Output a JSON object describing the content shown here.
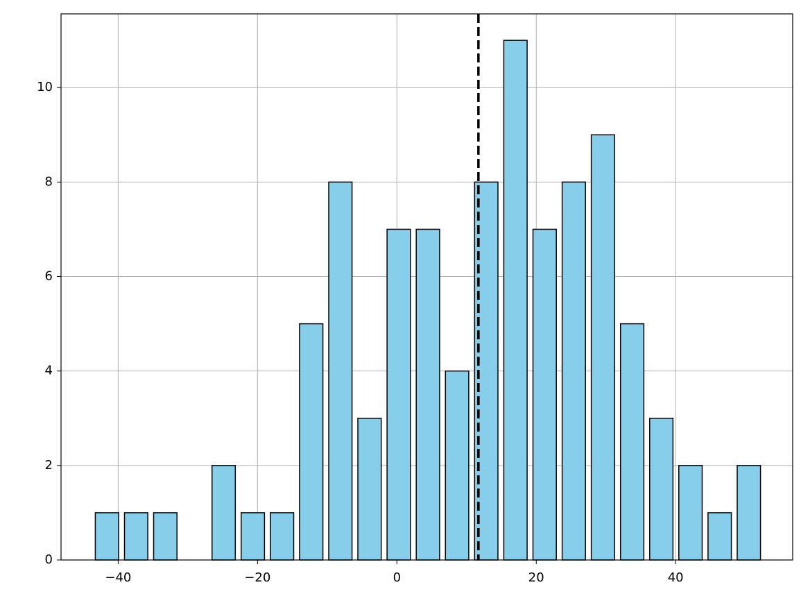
{
  "chart_data": {
    "type": "histogram",
    "bins": [
      -43.7,
      -39.51,
      -35.33,
      -31.14,
      -26.95,
      -22.77,
      -18.58,
      -14.39,
      -10.2,
      -6.02,
      -1.83,
      2.36,
      6.55,
      10.73,
      14.92,
      19.11,
      23.3,
      27.48,
      31.67,
      35.86,
      40.04,
      44.23,
      48.42,
      52.6
    ],
    "counts": [
      1,
      1,
      1,
      0,
      2,
      1,
      1,
      5,
      8,
      3,
      7,
      7,
      4,
      8,
      11,
      7,
      8,
      9,
      5,
      3,
      2,
      1,
      2
    ],
    "color": "#87ceeb",
    "edgecolor": "#000000",
    "vline": {
      "x": 11.7,
      "color": "#000000",
      "style": "dashed"
    },
    "xlim": [
      -48.2,
      56.8
    ],
    "ylim": [
      0,
      11.56
    ],
    "xticks": [
      {
        "value": -40,
        "label": "−40"
      },
      {
        "value": -20,
        "label": "−20"
      },
      0,
      20,
      40
    ],
    "yticks": [
      0,
      2,
      4,
      6,
      8,
      10
    ],
    "grid": true
  }
}
